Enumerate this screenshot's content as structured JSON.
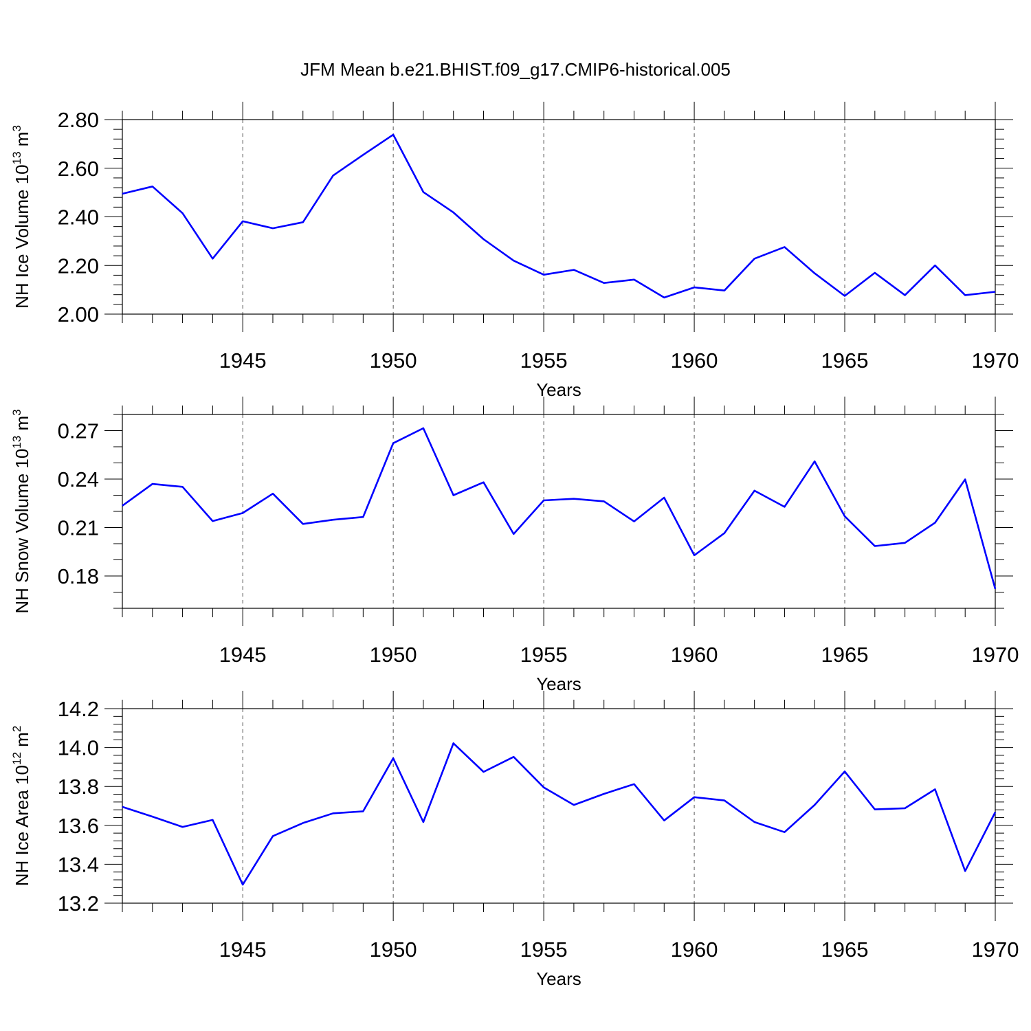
{
  "title": "JFM Mean b.e21.BHIST.f09_g17.CMIP6-historical.005",
  "colors": {
    "series": "#0000ff",
    "axis": "#000000",
    "grid": "#555555"
  },
  "chart_data": [
    {
      "type": "line",
      "title": "",
      "xlabel": "Years",
      "ylabel": {
        "text": "NH Ice Volume 10",
        "exp": "13",
        "unit": " m",
        "unit_exp": "3"
      },
      "x": [
        1941,
        1942,
        1943,
        1944,
        1945,
        1946,
        1947,
        1948,
        1949,
        1950,
        1951,
        1952,
        1953,
        1954,
        1955,
        1956,
        1957,
        1958,
        1959,
        1960,
        1961,
        1962,
        1963,
        1964,
        1965,
        1966,
        1967,
        1968,
        1969,
        1970
      ],
      "values": [
        2.495,
        2.525,
        2.415,
        2.228,
        2.382,
        2.353,
        2.378,
        2.57,
        2.655,
        2.738,
        2.502,
        2.418,
        2.308,
        2.22,
        2.162,
        2.182,
        2.128,
        2.142,
        2.068,
        2.11,
        2.097,
        2.228,
        2.276,
        2.168,
        2.075,
        2.17,
        2.078,
        2.2,
        2.078,
        2.092
      ],
      "xlim": [
        1941,
        1970
      ],
      "ylim": [
        2.0,
        2.8
      ],
      "yticks": [
        2.0,
        2.2,
        2.4,
        2.6,
        2.8
      ],
      "ytick_labels": [
        "2.00",
        "2.20",
        "2.40",
        "2.60",
        "2.80"
      ],
      "yminor": 0.04,
      "xticks": [
        1945,
        1950,
        1955,
        1960,
        1965,
        1970
      ],
      "xtick_labels": [
        "1945",
        "1950",
        "1955",
        "1960",
        "1965",
        "1970"
      ],
      "grid": "vertical-dashed"
    },
    {
      "type": "line",
      "title": "",
      "xlabel": "Years",
      "ylabel": {
        "text": "NH Snow Volume 10",
        "exp": "13",
        "unit": " m",
        "unit_exp": "3"
      },
      "x": [
        1941,
        1942,
        1943,
        1944,
        1945,
        1946,
        1947,
        1948,
        1949,
        1950,
        1951,
        1952,
        1953,
        1954,
        1955,
        1956,
        1957,
        1958,
        1959,
        1960,
        1961,
        1962,
        1963,
        1964,
        1965,
        1966,
        1967,
        1968,
        1969,
        1970
      ],
      "values": [
        0.2235,
        0.237,
        0.2352,
        0.214,
        0.219,
        0.231,
        0.2122,
        0.2148,
        0.2165,
        0.2622,
        0.2715,
        0.23,
        0.238,
        0.206,
        0.2268,
        0.2278,
        0.2262,
        0.2138,
        0.2285,
        0.1928,
        0.2065,
        0.2328,
        0.2228,
        0.251,
        0.217,
        0.1985,
        0.2005,
        0.213,
        0.2398,
        0.172
      ],
      "xlim": [
        1941,
        1970
      ],
      "ylim": [
        0.16,
        0.28
      ],
      "yticks": [
        0.18,
        0.21,
        0.24,
        0.27
      ],
      "ytick_labels": [
        "0.18",
        "0.21",
        "0.24",
        "0.27"
      ],
      "yminor": 0.01,
      "xticks": [
        1945,
        1950,
        1955,
        1960,
        1965,
        1970
      ],
      "xtick_labels": [
        "1945",
        "1950",
        "1955",
        "1960",
        "1965",
        "1970"
      ],
      "grid": "vertical-dashed"
    },
    {
      "type": "line",
      "title": "",
      "xlabel": "Years",
      "ylabel": {
        "text": "NH Ice Area 10",
        "exp": "12",
        "unit": " m",
        "unit_exp": "2"
      },
      "x": [
        1941,
        1942,
        1943,
        1944,
        1945,
        1946,
        1947,
        1948,
        1949,
        1950,
        1951,
        1952,
        1953,
        1954,
        1955,
        1956,
        1957,
        1958,
        1959,
        1960,
        1961,
        1962,
        1963,
        1964,
        1965,
        1966,
        1967,
        1968,
        1969,
        1970
      ],
      "values": [
        13.695,
        13.645,
        13.592,
        13.628,
        13.295,
        13.545,
        13.612,
        13.662,
        13.672,
        13.945,
        13.617,
        14.022,
        13.875,
        13.952,
        13.795,
        13.705,
        13.762,
        13.812,
        13.625,
        13.745,
        13.728,
        13.617,
        13.565,
        13.705,
        13.877,
        13.682,
        13.688,
        13.785,
        13.365,
        13.668
      ],
      "xlim": [
        1941,
        1970
      ],
      "ylim": [
        13.2,
        14.2
      ],
      "yticks": [
        13.2,
        13.4,
        13.6,
        13.8,
        14.0,
        14.2
      ],
      "ytick_labels": [
        "13.2",
        "13.4",
        "13.6",
        "13.8",
        "14.0",
        "14.2"
      ],
      "yminor": 0.04,
      "xticks": [
        1945,
        1950,
        1955,
        1960,
        1965,
        1970
      ],
      "xtick_labels": [
        "1945",
        "1950",
        "1955",
        "1960",
        "1965",
        "1970"
      ],
      "grid": "vertical-dashed"
    }
  ]
}
